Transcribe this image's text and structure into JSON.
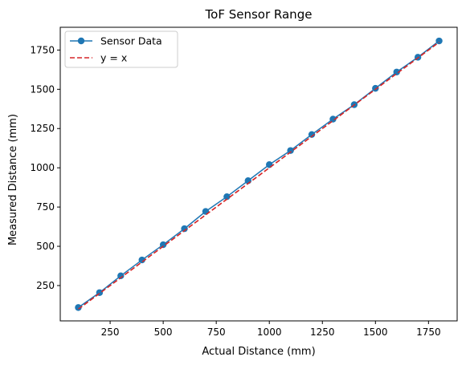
{
  "chart_data": {
    "type": "line",
    "title": "ToF Sensor Range",
    "xlabel": "Actual Distance (mm)",
    "ylabel": "Measured Distance (mm)",
    "xlim": [
      15,
      1885
    ],
    "ylim": [
      25,
      1895
    ],
    "xticks": [
      250,
      500,
      750,
      1000,
      1250,
      1500,
      1750
    ],
    "yticks": [
      250,
      500,
      750,
      1000,
      1250,
      1500,
      1750
    ],
    "grid": false,
    "legend_position": "upper-left",
    "series": [
      {
        "name": "Sensor Data",
        "style": "line-marker",
        "color": "#1f77b4",
        "x": [
          100,
          200,
          300,
          400,
          500,
          600,
          700,
          800,
          900,
          1000,
          1100,
          1200,
          1300,
          1400,
          1500,
          1600,
          1700,
          1800
        ],
        "y": [
          110,
          205,
          312,
          413,
          510,
          612,
          722,
          816,
          918,
          1020,
          1110,
          1212,
          1310,
          1402,
          1506,
          1610,
          1704,
          1808
        ]
      },
      {
        "name": "y = x",
        "style": "dashed",
        "color": "#d62728",
        "x": [
          100,
          1800
        ],
        "y": [
          100,
          1800
        ]
      }
    ]
  }
}
